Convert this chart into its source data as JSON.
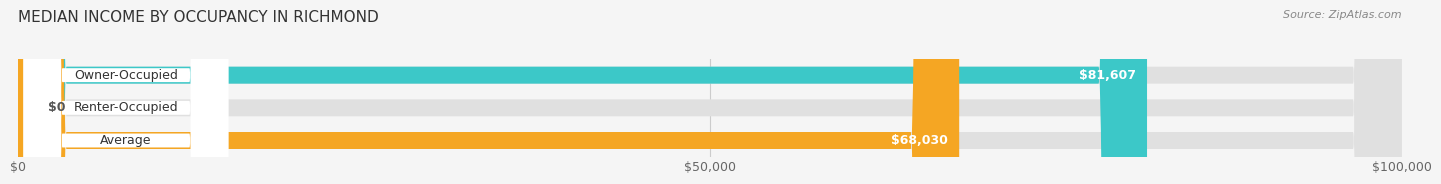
{
  "title": "MEDIAN INCOME BY OCCUPANCY IN RICHMOND",
  "source": "Source: ZipAtlas.com",
  "categories": [
    "Owner-Occupied",
    "Renter-Occupied",
    "Average"
  ],
  "values": [
    81607,
    0,
    68030
  ],
  "bar_colors": [
    "#3cc8c8",
    "#b8a0cc",
    "#f5a623"
  ],
  "bar_labels": [
    "$81,607",
    "$0",
    "$68,030"
  ],
  "xlim": [
    0,
    100000
  ],
  "xticks": [
    0,
    50000,
    100000
  ],
  "xtick_labels": [
    "$0",
    "$50,000",
    "$100,000"
  ],
  "background_color": "#f5f5f5",
  "bar_bg_color": "#e0e0e0",
  "title_fontsize": 11,
  "label_fontsize": 9,
  "source_fontsize": 8
}
